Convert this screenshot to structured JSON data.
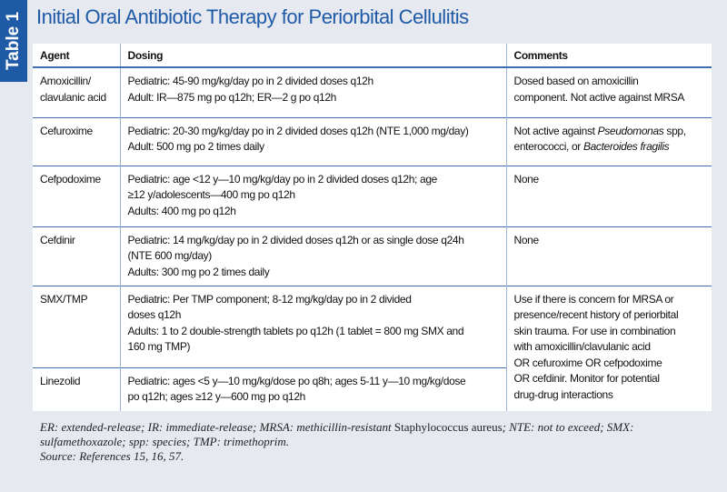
{
  "header": {
    "table_label": "Table 1",
    "title": "Initial Oral Antibiotic Therapy for Periorbital Cellulitis"
  },
  "table": {
    "columns": [
      "Agent",
      "Dosing",
      "Comments"
    ],
    "rows": [
      {
        "agent": [
          "Amoxicillin/",
          "clavulanic acid"
        ],
        "dosing": [
          "Pediatric: 45-90 mg/kg/day po in 2 divided doses q12h",
          "Adult: IR—875 mg po q12h; ER—2 g po q12h"
        ],
        "comments": [
          "Dosed based on amoxicillin",
          "component. Not active against MRSA"
        ]
      },
      {
        "agent": [
          "Cefuroxime"
        ],
        "dosing": [
          "Pediatric: 20-30 mg/kg/day po in 2 divided doses q12h (NTE 1,000 mg/day)",
          "Adult: 500 mg po 2 times daily"
        ],
        "comments": [
          [
            "Not active against ",
            {
              "text": "Pseudomonas",
              "style": "italic"
            },
            " spp,"
          ],
          [
            "enterococci, or ",
            {
              "text": "Bacteroides fragilis",
              "style": "italic"
            }
          ]
        ]
      },
      {
        "agent": [
          "Cefpodoxime"
        ],
        "dosing": [
          "Pediatric: age <12 y—10 mg/kg/day po in 2 divided doses q12h; age",
          "≥12 y/adolescents—400 mg po q12h",
          "Adults: 400 mg po q12h"
        ],
        "comments": [
          "None"
        ]
      },
      {
        "agent": [
          "Cefdinir"
        ],
        "dosing": [
          "Pediatric: 14 mg/kg/day po in 2 divided doses q12h or as single dose q24h",
          "(NTE 600 mg/day)",
          "Adults: 300 mg po 2 times daily"
        ],
        "comments": [
          "None"
        ]
      },
      {
        "agent": [
          "SMX/TMP"
        ],
        "dosing": [
          "Pediatric: Per TMP component; 8-12 mg/kg/day po in 2 divided",
          "doses q12h",
          "Adults: 1 to 2 double-strength tablets po q12h (1 tablet = 800 mg SMX and",
          "160 mg TMP)"
        ],
        "comments": [
          "Use if there is concern for MRSA or",
          "presence/recent history of periorbital",
          "skin trauma. For use in combination",
          "with amoxicillin/clavulanic acid",
          "OR cefuroxime OR cefpodoxime",
          "OR cefdinir. Monitor for potential",
          "drug-drug interactions"
        ]
      },
      {
        "agent": [
          "Linezolid"
        ],
        "dosing": [
          "Pediatric: ages <5 y—10 mg/kg/dose po q8h; ages 5-11 y—10 mg/kg/dose",
          "po q12h; ages ≥12 y—600 mg po q12h"
        ]
      }
    ]
  },
  "footnote": [
    [
      "ER: extended-release; IR: immediate-release; MRSA: methicillin-resistant ",
      {
        "text": "Staphylococcus aureus",
        "style": "normal"
      },
      "; NTE: not to exceed; SMX:"
    ],
    "sulfamethoxazole; spp: species; TMP: trimethoprim.",
    "Source: References 15, 16, 57."
  ]
}
